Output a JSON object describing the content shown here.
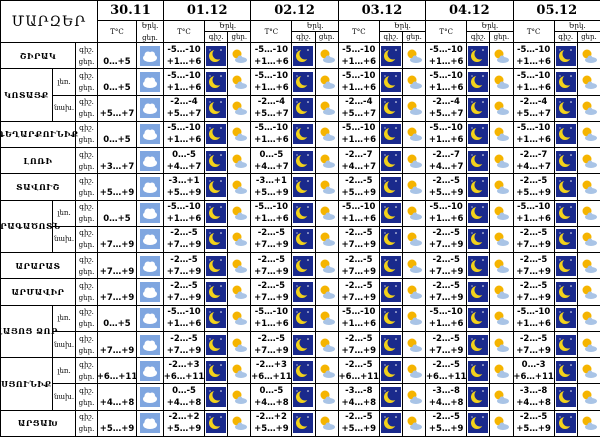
{
  "header": {
    "title": "ՄԱՐԶԵՐ",
    "temp_label": "T°C",
    "sky_label": "Երկ.",
    "night_label": "գիշ.",
    "day_label": "ցեր.",
    "dates": [
      "30.11",
      "01.12",
      "02.12",
      "03.12",
      "04.12",
      "05.12"
    ]
  },
  "regions": [
    {
      "name": "ՇԻՐԱԿ",
      "rows": [
        {
          "first_day": "0…+5",
          "days": [
            {
              "night": "-5…-10",
              "day": "+1…+6"
            },
            {
              "night": "-5…-10",
              "day": "+1…+6"
            },
            {
              "night": "-5…-10",
              "day": "+1…+6"
            },
            {
              "night": "-5…-10",
              "day": "+1…+6"
            },
            {
              "night": "-5…-10",
              "day": "+1…+6"
            }
          ]
        }
      ]
    },
    {
      "name": "ԿՈՏԱՅՔ",
      "rows": [
        {
          "sub": "լեռ.",
          "first_day": "0…+5",
          "days": [
            {
              "night": "-5…-10",
              "day": "+1…+6"
            },
            {
              "night": "-5…-10",
              "day": "+1…+6"
            },
            {
              "night": "-5…-10",
              "day": "+1…+6"
            },
            {
              "night": "-5…-10",
              "day": "+1…+6"
            },
            {
              "night": "-5…-10",
              "day": "+1…+6"
            }
          ]
        },
        {
          "sub": "նախ.",
          "first_day": "+5…+7",
          "days": [
            {
              "night": "-2…-4",
              "day": "+5…+7"
            },
            {
              "night": "-2…-4",
              "day": "+5…+7"
            },
            {
              "night": "-2…-4",
              "day": "+5…+7"
            },
            {
              "night": "-2…-4",
              "day": "+5…+7"
            },
            {
              "night": "-2…-4",
              "day": "+5…+7"
            }
          ]
        }
      ]
    },
    {
      "name": "ԳԵՂԱՐՔՈՒՆԻՔ",
      "rows": [
        {
          "first_day": "0…+5",
          "days": [
            {
              "night": "-5…-10",
              "day": "+1…+6"
            },
            {
              "night": "-5…-10",
              "day": "+1…+6"
            },
            {
              "night": "-5…-10",
              "day": "+1…+6"
            },
            {
              "night": "-5…-10",
              "day": "+1…+6"
            },
            {
              "night": "-5…-10",
              "day": "+1…+6"
            }
          ]
        }
      ]
    },
    {
      "name": "ԼՈՌԻ",
      "rows": [
        {
          "first_day": "+3…+7",
          "days": [
            {
              "night": "0…-5",
              "day": "+4…+7"
            },
            {
              "night": "0…-5",
              "day": "+4…+7"
            },
            {
              "night": "-2…-7",
              "day": "+4…+7"
            },
            {
              "night": "-2…-7",
              "day": "+4…+7"
            },
            {
              "night": "-2…-7",
              "day": "+4…+7"
            }
          ]
        }
      ]
    },
    {
      "name": "ՏԱՎՈՒՇ",
      "rows": [
        {
          "first_day": "+5…+9",
          "days": [
            {
              "night": "-3…+1",
              "day": "+5…+9"
            },
            {
              "night": "-3…+1",
              "day": "+5…+9"
            },
            {
              "night": "-2…-5",
              "day": "+5…+9"
            },
            {
              "night": "-2…-5",
              "day": "+5…+9"
            },
            {
              "night": "-2…-5",
              "day": "+5…+9"
            }
          ]
        }
      ]
    },
    {
      "name": "ԱՐԱԳԱԾՈՏՆ",
      "rows": [
        {
          "sub": "լեռ.",
          "first_day": "0…+5",
          "days": [
            {
              "night": "-5…-10",
              "day": "+1…+6"
            },
            {
              "night": "-5…-10",
              "day": "+1…+6"
            },
            {
              "night": "-5…-10",
              "day": "+1…+6"
            },
            {
              "night": "-5…-10",
              "day": "+1…+6"
            },
            {
              "night": "-5…-10",
              "day": "+1…+6"
            }
          ]
        },
        {
          "sub": "նախ.",
          "first_day": "+7…+9",
          "days": [
            {
              "night": "-2…-5",
              "day": "+7…+9"
            },
            {
              "night": "-2…-5",
              "day": "+7…+9"
            },
            {
              "night": "-2…-5",
              "day": "+7…+9"
            },
            {
              "night": "-2…-5",
              "day": "+7…+9"
            },
            {
              "night": "-2…-5",
              "day": "+7…+9"
            }
          ]
        }
      ]
    },
    {
      "name": "ԱՐԱՐԱՏ",
      "rows": [
        {
          "first_day": "+7…+9",
          "days": [
            {
              "night": "-2…-5",
              "day": "+7…+9"
            },
            {
              "night": "-2…-5",
              "day": "+7…+9"
            },
            {
              "night": "-2…-5",
              "day": "+7…+9"
            },
            {
              "night": "-2…-5",
              "day": "+7…+9"
            },
            {
              "night": "-2…-5",
              "day": "+7…+9"
            }
          ]
        }
      ]
    },
    {
      "name": "ԱՐՄԱՎԻՐ",
      "rows": [
        {
          "first_day": "+7…+9",
          "days": [
            {
              "night": "-2…-5",
              "day": "+7…+9"
            },
            {
              "night": "-2…-5",
              "day": "+7…+9"
            },
            {
              "night": "-2…-5",
              "day": "+7…+9"
            },
            {
              "night": "-2…-5",
              "day": "+7…+9"
            },
            {
              "night": "-2…-5",
              "day": "+7…+9"
            }
          ]
        }
      ]
    },
    {
      "name": "ՎԱՅՈՑ ՁՈՐ",
      "rows": [
        {
          "sub": "լեռ.",
          "first_day": "0…+5",
          "days": [
            {
              "night": "-5…-10",
              "day": "+1…+6"
            },
            {
              "night": "-5…-10",
              "day": "+1…+6"
            },
            {
              "night": "-5…-10",
              "day": "+1…+6"
            },
            {
              "night": "-5…-10",
              "day": "+1…+6"
            },
            {
              "night": "-5…-10",
              "day": "+1…+6"
            }
          ]
        },
        {
          "sub": "նախ.",
          "first_day": "+7…+9",
          "days": [
            {
              "night": "-2…-5",
              "day": "+7…+9"
            },
            {
              "night": "-2…-5",
              "day": "+7…+9"
            },
            {
              "night": "-2…-5",
              "day": "+7…+9"
            },
            {
              "night": "-2…-5",
              "day": "+7…+9"
            },
            {
              "night": "-2…-5",
              "day": "+7…+9"
            }
          ]
        }
      ]
    },
    {
      "name": "ՍՅՈՒՆԻՔ",
      "rows": [
        {
          "sub": "լեռ.",
          "first_day": "+6…+11",
          "days": [
            {
              "night": "-2…+3",
              "day": "+6…+11"
            },
            {
              "night": "-2…+3",
              "day": "+6…+11"
            },
            {
              "night": "-2…-5",
              "day": "+6…+11"
            },
            {
              "night": "-2…-5",
              "day": "+6…+11"
            },
            {
              "night": "0…-3",
              "day": "+6…+11"
            }
          ]
        },
        {
          "sub": "նախ.",
          "first_day": "+4…+8",
          "days": [
            {
              "night": "0…-5",
              "day": "+4…+8"
            },
            {
              "night": "0…-5",
              "day": "+4…+8"
            },
            {
              "night": "-3…-8",
              "day": "+4…+8"
            },
            {
              "night": "-3…-8",
              "day": "+4…+8"
            },
            {
              "night": "-3…-8",
              "day": "+4…+8"
            }
          ]
        }
      ]
    },
    {
      "name": "ԱՐՑԱԽ",
      "rows": [
        {
          "first_day": "+5…+9",
          "days": [
            {
              "night": "-2…+2",
              "day": "+5…+9"
            },
            {
              "night": "-2…+2",
              "day": "+5…+9"
            },
            {
              "night": "-2…-5",
              "day": "+5…+9"
            },
            {
              "night": "-2…-5",
              "day": "+5…+9"
            },
            {
              "night": "-2…-5",
              "day": "+5…+9"
            }
          ]
        }
      ]
    }
  ]
}
